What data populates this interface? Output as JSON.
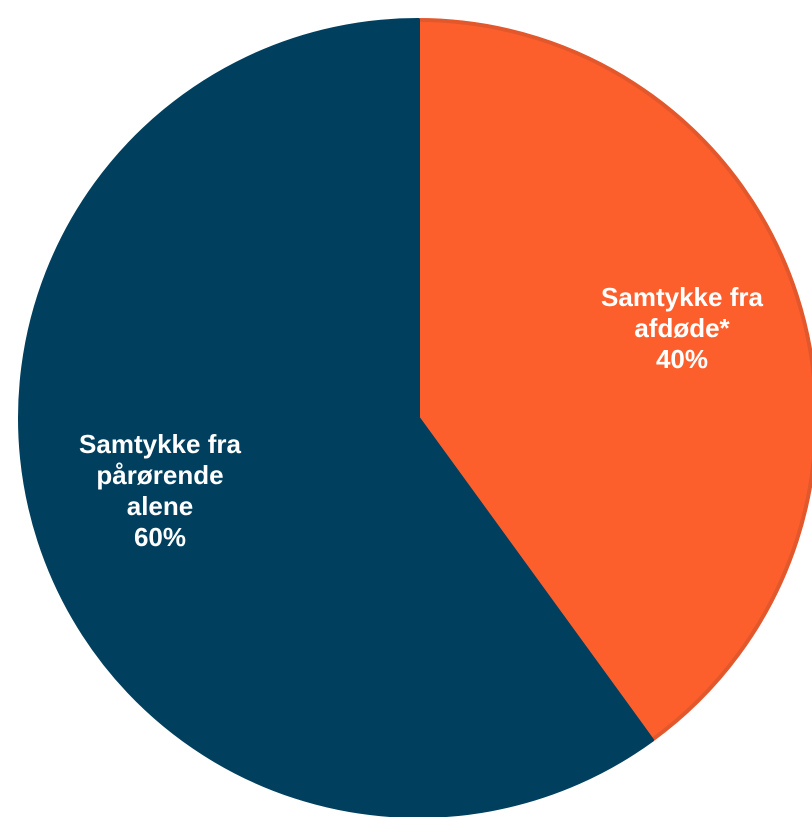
{
  "chart_data": {
    "type": "pie",
    "slices": [
      {
        "label_lines": [
          "Samtykke fra",
          "afdøde*"
        ],
        "value": 40,
        "value_label": "40%",
        "color": "#fd5f2c",
        "edge_color": "#e2582c"
      },
      {
        "label_lines": [
          "Samtykke fra",
          "pårørende",
          "alene"
        ],
        "value": 60,
        "value_label": "60%",
        "color": "#003f5e",
        "edge_color": "#003f5e"
      }
    ],
    "start_angle": "12 o'clock",
    "direction": "clockwise",
    "legend": "none",
    "title": ""
  }
}
